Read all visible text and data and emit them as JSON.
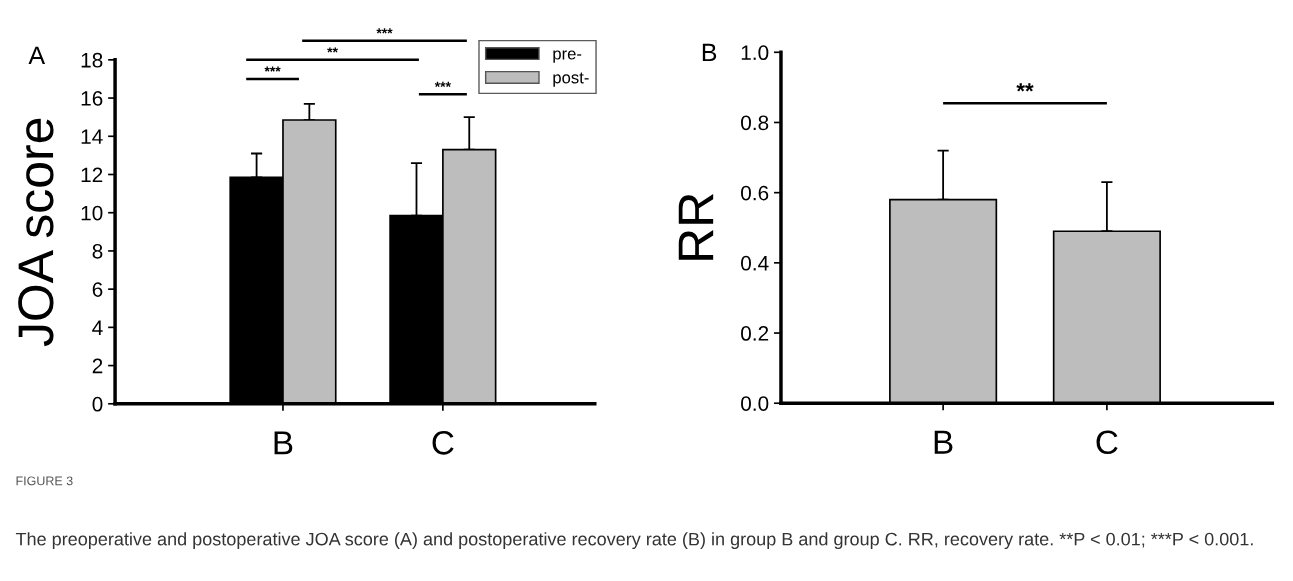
{
  "chart_data": [
    {
      "type": "bar",
      "ylabel": "JOA score",
      "categories": [
        "B",
        "C"
      ],
      "series": [
        {
          "name": "pre-",
          "color": "#000000",
          "values": [
            11.85,
            9.85
          ],
          "errors": [
            [
              11.85,
              13.1
            ],
            [
              9.85,
              12.6
            ]
          ]
        },
        {
          "name": "post-",
          "color": "#bdbdbd",
          "values": [
            14.85,
            13.3
          ],
          "errors": [
            [
              14.85,
              15.7
            ],
            [
              13.3,
              15.0
            ]
          ]
        }
      ],
      "ylim": [
        0,
        18
      ],
      "yticks": [
        0,
        2,
        4,
        6,
        8,
        10,
        12,
        14,
        16,
        18
      ],
      "legend": "top right",
      "grid": false,
      "annotations": [
        "A",
        "***",
        "**",
        "***",
        "***",
        "FIGURE 3",
        "The preoperative and postoperative JOA score (A) and postoperative recovery rate (B) in group B and group C. RR, recovery rate. **P < 0.01; ***P < 0.001."
      ]
    },
    {
      "type": "bar",
      "ylabel": "RR",
      "categories": [
        "B",
        "C"
      ],
      "series": [
        {
          "color": "#bdbdbd",
          "values": [
            0.58,
            0.49
          ],
          "errors": [
            [
              0.58,
              0.72
            ],
            [
              0.49,
              0.63
            ]
          ]
        }
      ],
      "ylim": [
        0,
        1.0
      ],
      "yticks": [
        {
          "value": 0,
          "label": "0.0"
        },
        {
          "value": 0.2,
          "label": "0.2"
        },
        {
          "value": 0.4,
          "label": "0.4"
        },
        {
          "value": 0.6,
          "label": "0.6"
        },
        {
          "value": 0.8,
          "label": "0.8"
        },
        {
          "value": 1.0,
          "label": "1.0"
        }
      ],
      "grid": false,
      "annotations": [
        "B",
        "**"
      ]
    }
  ]
}
